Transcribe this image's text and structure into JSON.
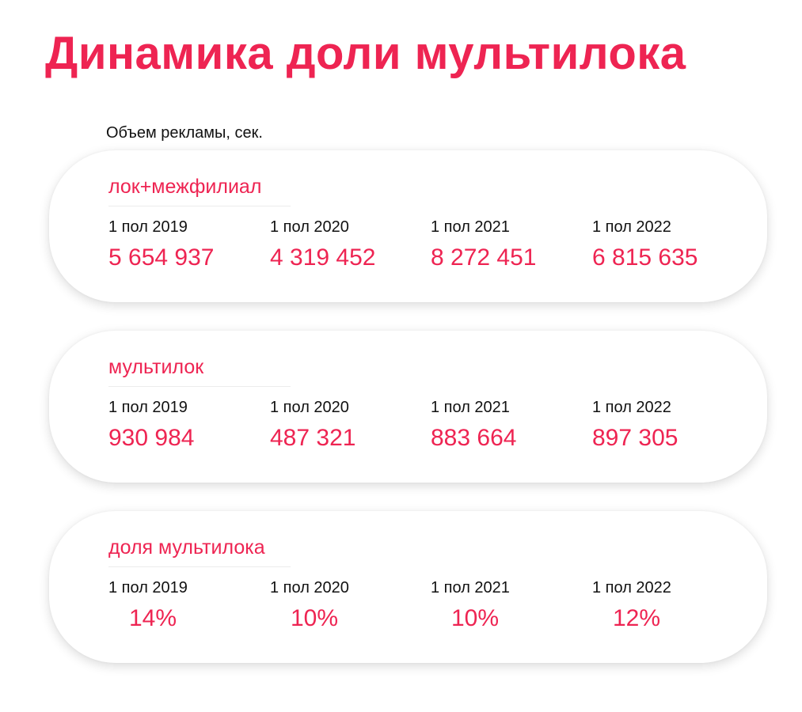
{
  "page": {
    "title": "Динамика доли мультилока",
    "subtitle": "Объем рекламы, сек."
  },
  "colors": {
    "accent": "#ee2452",
    "text": "#111111",
    "card_bg": "#ffffff"
  },
  "cards": [
    {
      "label": "лок+межфилиал",
      "items": [
        {
          "period": "1 пол 2019",
          "value": "5 654 937"
        },
        {
          "period": "1 пол 2020",
          "value": "4 319 452"
        },
        {
          "period": "1 пол 2021",
          "value": "8 272 451"
        },
        {
          "period": "1 пол 2022",
          "value": "6 815 635"
        }
      ]
    },
    {
      "label": "мультилок",
      "items": [
        {
          "period": "1 пол 2019",
          "value": "930 984"
        },
        {
          "period": "1 пол 2020",
          "value": "487 321"
        },
        {
          "period": "1 пол 2021",
          "value": "883 664"
        },
        {
          "period": "1 пол 2022",
          "value": "897 305"
        }
      ]
    },
    {
      "label": "доля мультилока",
      "items": [
        {
          "period": "1 пол 2019",
          "value": "14%"
        },
        {
          "period": "1 пол 2020",
          "value": "10%"
        },
        {
          "period": "1 пол 2021",
          "value": "10%"
        },
        {
          "period": "1 пол 2022",
          "value": "12%"
        }
      ]
    }
  ]
}
